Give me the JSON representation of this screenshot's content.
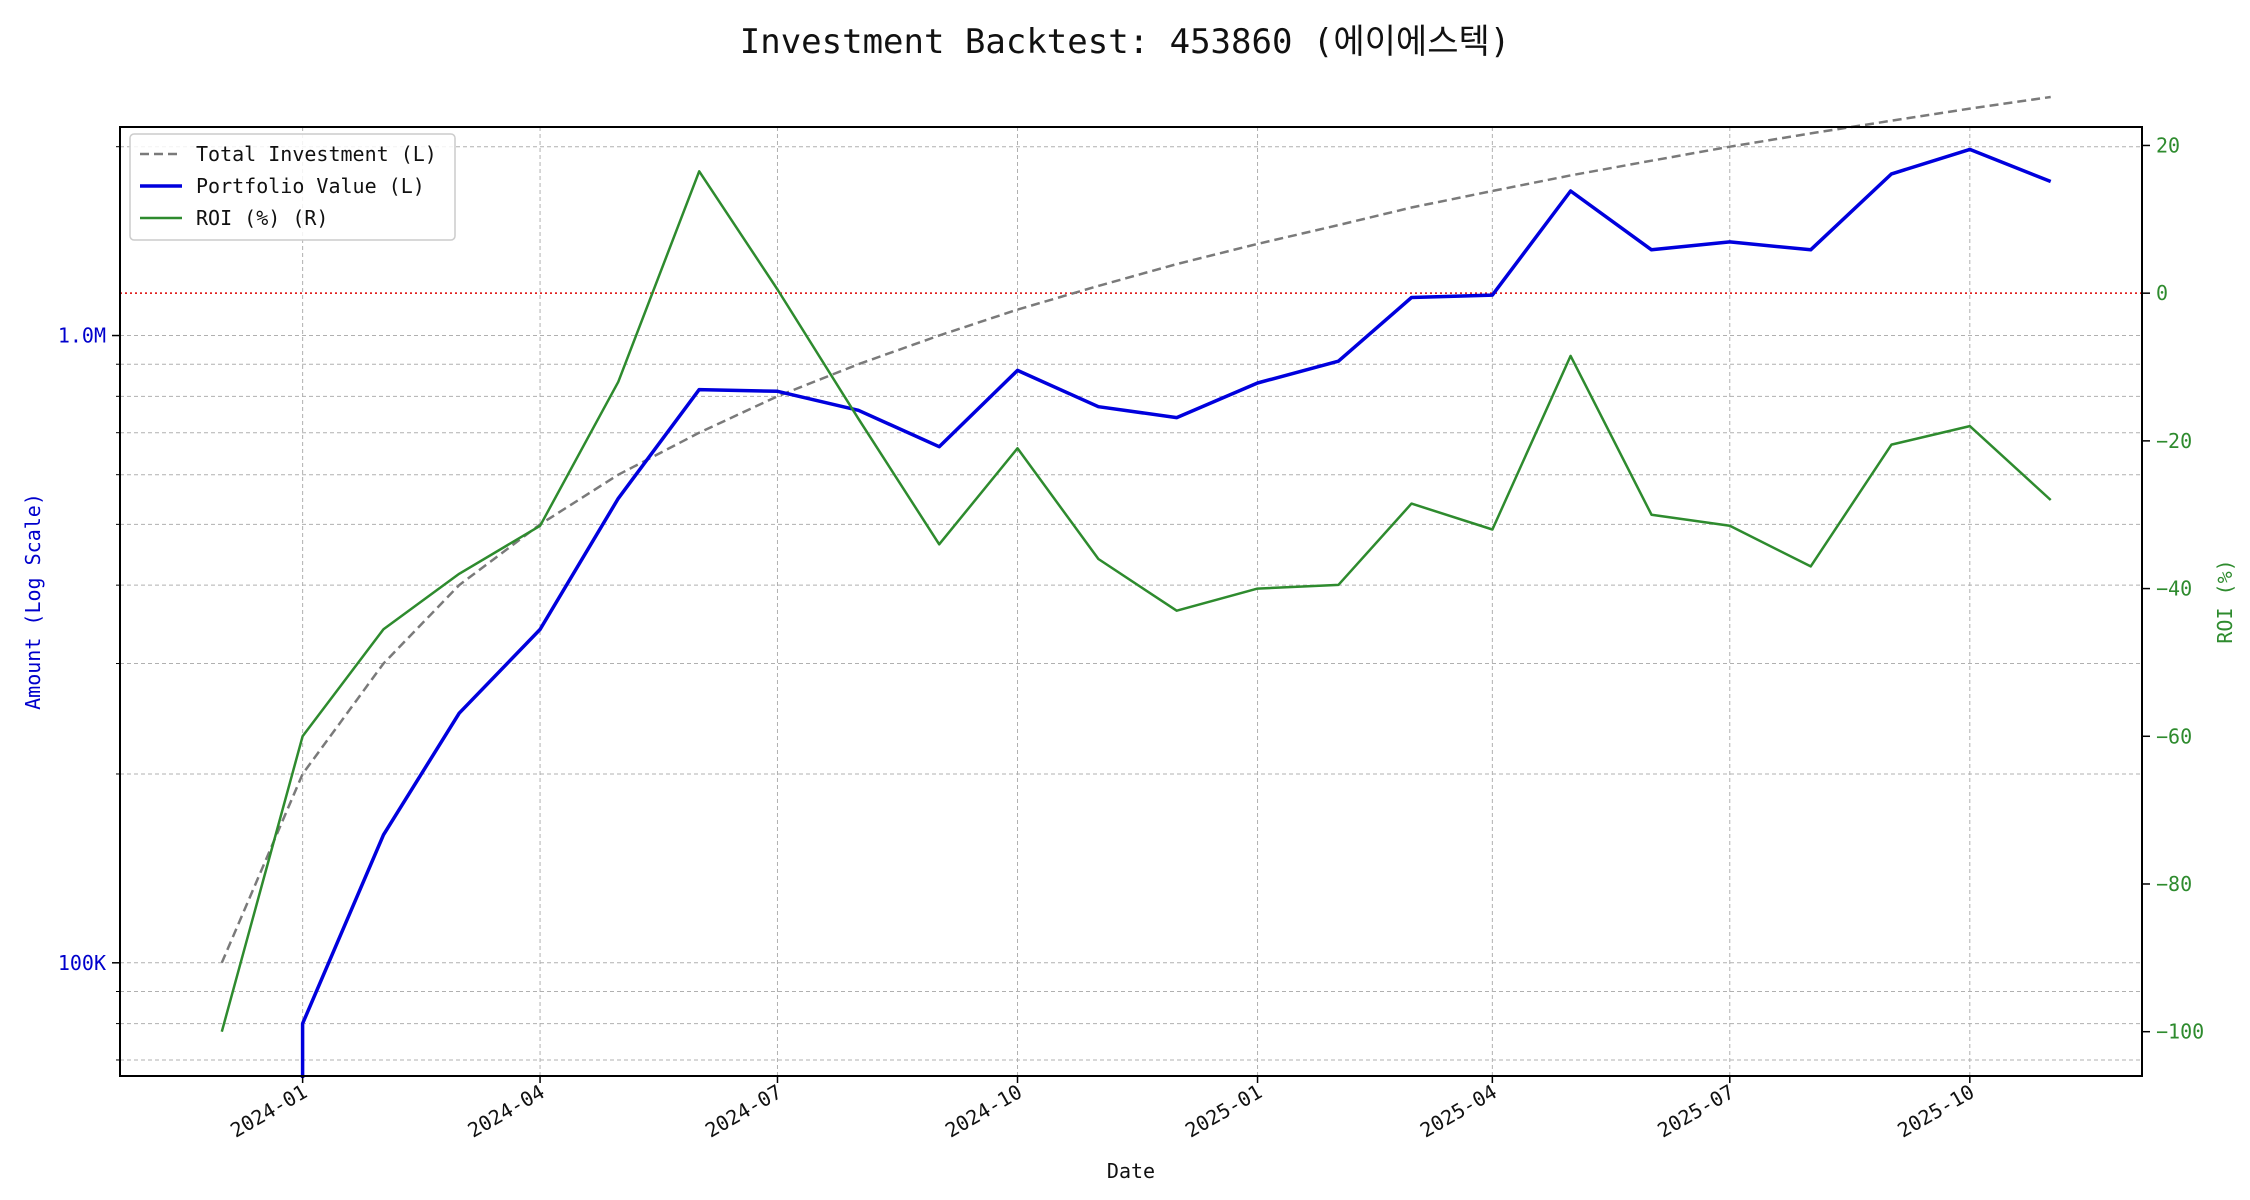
{
  "chart_data": {
    "type": "line",
    "title": "Investment Backtest: 453860 (에이에스텍)",
    "xlabel": "Date",
    "ylabel_left": "Amount (Log Scale)",
    "ylabel_right": "ROI (%)",
    "x_ticks": [
      "2024-01",
      "2024-04",
      "2024-07",
      "2024-10",
      "2025-01",
      "2025-04",
      "2025-07",
      "2025-10"
    ],
    "y_left_ticks": [
      "100K",
      "1.0M"
    ],
    "y_left_scale": "log",
    "y_left_lim": [
      66000,
      2150000
    ],
    "y_right_ticks": [
      "−100",
      "−80",
      "−60",
      "−40",
      "−20",
      "0",
      "20"
    ],
    "y_right_lim": [
      -106,
      22.5
    ],
    "x_lim": [
      "2023-10-23",
      "2025-12-06"
    ],
    "grid": true,
    "legend_position": "top-left",
    "zero_line": 0,
    "x": [
      "2023-12-01",
      "2024-01-01",
      "2024-02-01",
      "2024-03-01",
      "2024-04-01",
      "2024-05-01",
      "2024-06-01",
      "2024-07-01",
      "2024-08-01",
      "2024-09-01",
      "2024-10-01",
      "2024-11-01",
      "2024-12-01",
      "2025-01-01",
      "2025-02-01",
      "2025-03-01",
      "2025-04-01",
      "2025-05-01",
      "2025-06-01",
      "2025-07-01",
      "2025-08-01",
      "2025-09-01",
      "2025-10-01",
      "2025-11-01"
    ],
    "series": [
      {
        "name": "Total Investment (L)",
        "axis": "left",
        "color": "#7a7a7a",
        "style": "dashed",
        "values": [
          100000,
          200000,
          300000,
          400000,
          500000,
          600000,
          700000,
          800000,
          900000,
          1000000,
          1100000,
          1200000,
          1300000,
          1400000,
          1500000,
          1600000,
          1700000,
          1800000,
          1900000,
          2000000,
          2100000,
          2200000,
          2300000,
          2400000
        ]
      },
      {
        "name": "Portfolio Value (L)",
        "axis": "left",
        "color": "#0000dd",
        "style": "solid",
        "values": [
          null,
          80000,
          160000,
          250000,
          340000,
          550000,
          820000,
          815000,
          760000,
          665000,
          880000,
          770000,
          740000,
          840000,
          910000,
          1150000,
          1160000,
          1700000,
          1370000,
          1410000,
          1370000,
          1810000,
          1980000,
          1760000
        ]
      },
      {
        "name": "ROI (%) (R)",
        "axis": "right",
        "color": "#2e8b2e",
        "style": "solid",
        "values": [
          -100,
          -60,
          -45.5,
          -38,
          -31.5,
          -12,
          16.5,
          0.5,
          -17,
          -34,
          -21,
          -36,
          -43,
          -40,
          -39.5,
          -28.5,
          -32,
          -8.5,
          -30,
          -31.5,
          -37,
          -20.5,
          -18,
          -28
        ]
      }
    ]
  }
}
